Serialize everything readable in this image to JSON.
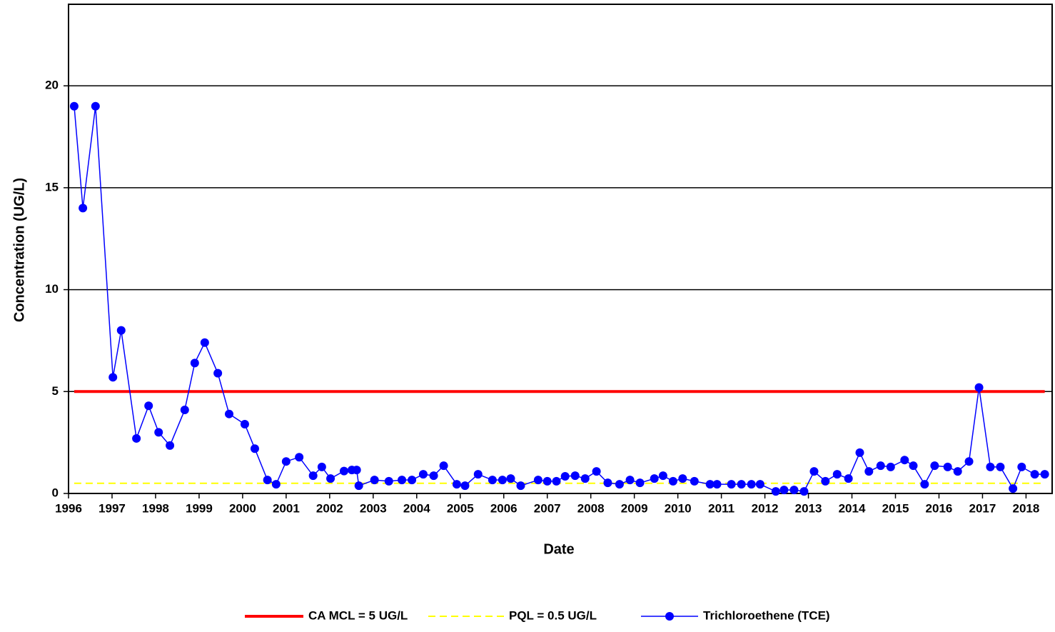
{
  "chart_data": {
    "type": "line",
    "x_label": "Date",
    "y_label": "Concentration (UG/L)",
    "xlim": [
      1996,
      2018.6
    ],
    "ylim": [
      0,
      24
    ],
    "xticks": [
      1996,
      1997,
      1998,
      1999,
      2000,
      2001,
      2002,
      2003,
      2004,
      2005,
      2006,
      2007,
      2008,
      2009,
      2010,
      2011,
      2012,
      2013,
      2014,
      2015,
      2016,
      2017,
      2018
    ],
    "yticks": [
      0,
      5,
      10,
      15,
      20
    ],
    "grid": true,
    "legend": "bottom",
    "series": [
      {
        "name": "CA MCL = 5 UG/L",
        "color": "#ff0000",
        "style": "solid",
        "x": [
          1996.13,
          2018.43
        ],
        "values": [
          5,
          5
        ]
      },
      {
        "name": "PQL = 0.5 UG/L",
        "color": "#ffff00",
        "style": "dashed",
        "x": [
          1996.13,
          2018.43
        ],
        "values": [
          0.5,
          0.5
        ]
      },
      {
        "name": "Trichloroethene (TCE)",
        "color": "#0000ff",
        "style": "marker",
        "x": [
          1996.13,
          1996.33,
          1996.62,
          1997.02,
          1997.21,
          1997.56,
          1997.84,
          1998.07,
          1998.33,
          1998.67,
          1998.9,
          1999.13,
          1999.43,
          1999.69,
          2000.05,
          2000.28,
          2000.57,
          2000.77,
          2001.0,
          2001.3,
          2001.62,
          2001.82,
          2002.02,
          2002.33,
          2002.51,
          2002.62,
          2002.67,
          2003.03,
          2003.36,
          2003.66,
          2003.89,
          2004.15,
          2004.39,
          2004.62,
          2004.92,
          2005.11,
          2005.41,
          2005.74,
          2005.97,
          2006.16,
          2006.39,
          2006.79,
          2007.0,
          2007.21,
          2007.41,
          2007.64,
          2007.87,
          2008.13,
          2008.39,
          2008.66,
          2008.9,
          2009.13,
          2009.46,
          2009.66,
          2009.89,
          2010.11,
          2010.38,
          2010.74,
          2010.9,
          2011.23,
          2011.46,
          2011.69,
          2011.89,
          2012.25,
          2012.44,
          2012.67,
          2012.9,
          2013.13,
          2013.39,
          2013.66,
          2013.92,
          2014.18,
          2014.39,
          2014.66,
          2014.89,
          2015.21,
          2015.41,
          2015.67,
          2015.9,
          2016.2,
          2016.43,
          2016.69,
          2016.92,
          2017.18,
          2017.41,
          2017.7,
          2017.9,
          2018.2,
          2018.43
        ],
        "values": [
          19,
          14,
          19,
          5.7,
          8,
          2.7,
          4.3,
          3,
          2.35,
          4.1,
          6.4,
          7.4,
          5.9,
          3.9,
          3.4,
          2.2,
          0.66,
          0.45,
          1.57,
          1.78,
          0.87,
          1.3,
          0.73,
          1.1,
          1.15,
          1.15,
          0.38,
          0.66,
          0.6,
          0.66,
          0.66,
          0.94,
          0.87,
          1.36,
          0.45,
          0.38,
          0.94,
          0.66,
          0.66,
          0.73,
          0.38,
          0.66,
          0.6,
          0.6,
          0.84,
          0.87,
          0.73,
          1.08,
          0.52,
          0.45,
          0.66,
          0.52,
          0.73,
          0.87,
          0.6,
          0.73,
          0.6,
          0.45,
          0.45,
          0.45,
          0.45,
          0.45,
          0.45,
          0.1,
          0.17,
          0.17,
          0.1,
          1.08,
          0.6,
          0.94,
          0.73,
          2,
          1.08,
          1.36,
          1.3,
          1.64,
          1.36,
          0.45,
          1.36,
          1.3,
          1.08,
          1.57,
          5.2,
          1.3,
          1.3,
          0.24,
          1.3,
          0.94,
          0.94
        ]
      }
    ]
  }
}
